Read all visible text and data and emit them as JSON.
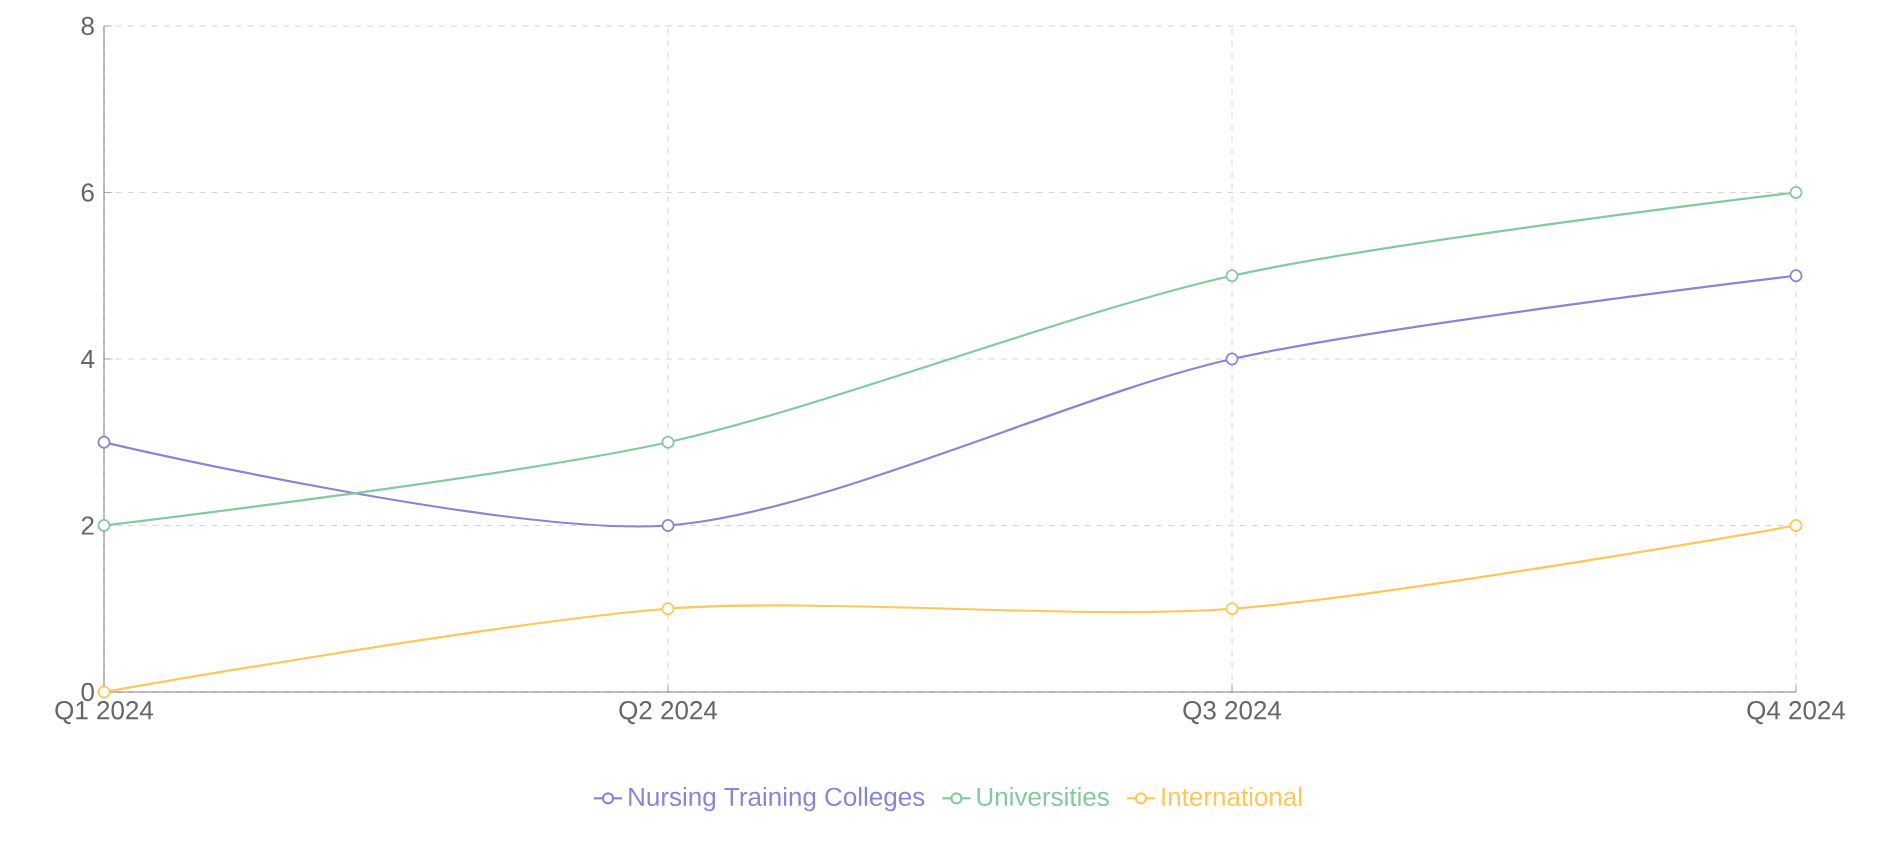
{
  "chart_data": {
    "type": "line",
    "categories": [
      "Q1 2024",
      "Q2 2024",
      "Q3 2024",
      "Q4 2024"
    ],
    "series": [
      {
        "name": "Nursing Training Colleges",
        "color": "#8884d8",
        "values": [
          3,
          2,
          4,
          5
        ]
      },
      {
        "name": "Universities",
        "color": "#82ca9d",
        "values": [
          2,
          3,
          5,
          6
        ]
      },
      {
        "name": "International",
        "color": "#ffc658",
        "values": [
          0,
          1,
          1,
          2
        ]
      }
    ],
    "ylim": [
      0,
      8
    ],
    "yticks": [
      0,
      2,
      4,
      6,
      8
    ],
    "grid": true,
    "legend": "bottom",
    "marker": "circle"
  }
}
